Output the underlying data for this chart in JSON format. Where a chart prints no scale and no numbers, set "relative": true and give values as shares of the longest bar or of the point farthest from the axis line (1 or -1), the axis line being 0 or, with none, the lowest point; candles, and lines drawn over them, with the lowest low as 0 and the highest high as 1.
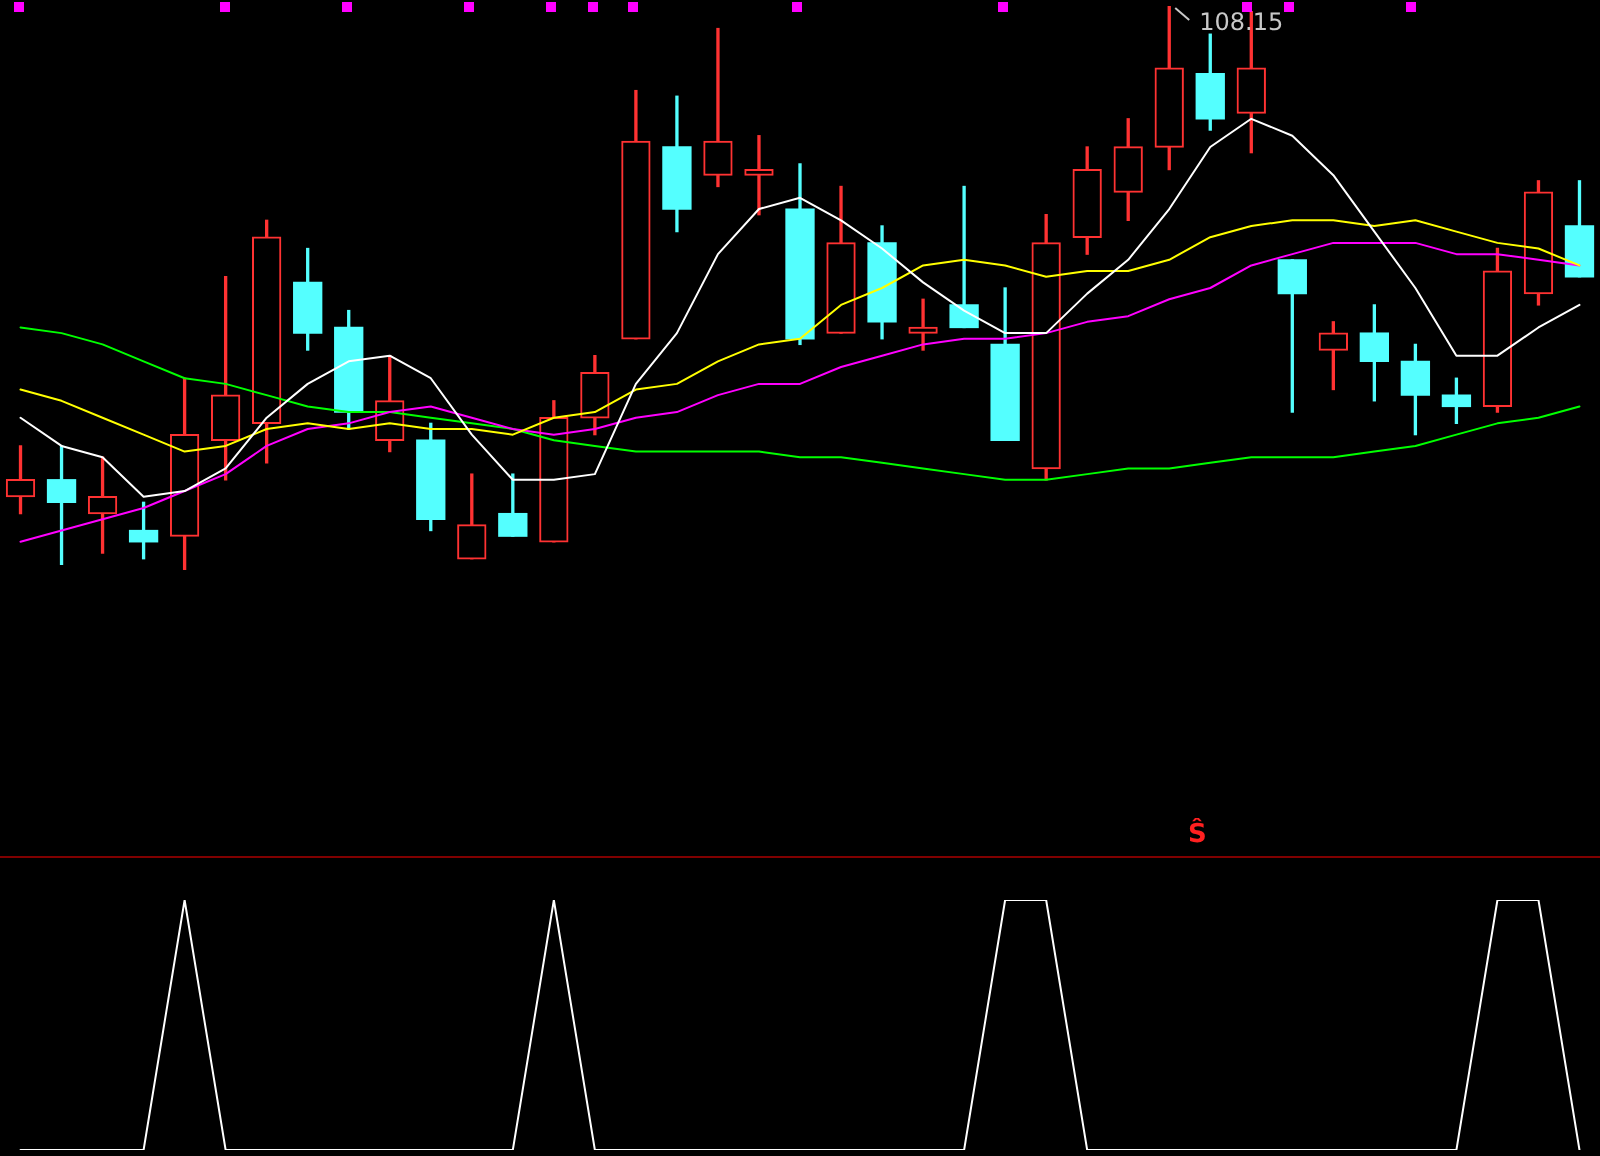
{
  "chart_data": [
    {
      "type": "candlestick",
      "relative": true,
      "categories": [
        null,
        null,
        null,
        null,
        null,
        null,
        null,
        null,
        null,
        null,
        null,
        null,
        null,
        null,
        null,
        null,
        null,
        null,
        null,
        null,
        null,
        null,
        null,
        null,
        null,
        null,
        null,
        null,
        null,
        null,
        null,
        null,
        null,
        null,
        null,
        null,
        null,
        null,
        null
      ],
      "ohlc": [
        [
          0.13,
          0.22,
          0.1,
          0.16
        ],
        [
          0.16,
          0.22,
          0.01,
          0.12
        ],
        [
          0.1,
          0.2,
          0.03,
          0.13
        ],
        [
          0.07,
          0.12,
          0.02,
          0.05
        ],
        [
          0.06,
          0.34,
          0,
          0.24
        ],
        [
          0.23,
          0.52,
          0.16,
          0.31
        ],
        [
          0.26,
          0.62,
          0.19,
          0.59
        ],
        [
          0.51,
          0.57,
          0.39,
          0.42
        ],
        [
          0.43,
          0.46,
          0.25,
          0.28
        ],
        [
          0.23,
          0.38,
          0.21,
          0.3
        ],
        [
          0.23,
          0.26,
          0.07,
          0.09
        ],
        [
          0.02,
          0.17,
          0.02,
          0.08
        ],
        [
          0.1,
          0.17,
          0.06,
          0.06
        ],
        [
          0.05,
          0.3,
          0.05,
          0.27
        ],
        [
          0.27,
          0.38,
          0.24,
          0.35
        ],
        [
          0.41,
          0.85,
          0.41,
          0.76
        ],
        [
          0.75,
          0.84,
          0.6,
          0.64
        ],
        [
          0.7,
          0.96,
          0.68,
          0.76
        ],
        [
          0.7,
          0.77,
          0.63,
          0.71
        ],
        [
          0.64,
          0.72,
          0.4,
          0.41
        ],
        [
          0.42,
          0.68,
          0.42,
          0.58
        ],
        [
          0.58,
          0.61,
          0.41,
          0.44
        ],
        [
          0.42,
          0.48,
          0.39,
          0.43
        ],
        [
          0.47,
          0.68,
          0.43,
          0.43
        ],
        [
          0.4,
          0.5,
          0.23,
          0.23
        ],
        [
          0.18,
          0.63,
          0.16,
          0.58
        ],
        [
          0.59,
          0.75,
          0.56,
          0.71
        ],
        [
          0.67,
          0.8,
          0.62,
          0.75
        ],
        [
          0.75,
          1,
          0.71,
          0.89
        ],
        [
          0.88,
          0.95,
          0.78,
          0.8
        ],
        [
          0.81,
          0.99,
          0.74,
          0.89
        ],
        [
          0.55,
          0.55,
          0.28,
          0.49
        ],
        [
          0.39,
          0.44,
          0.32,
          0.42
        ],
        [
          0.42,
          0.47,
          0.3,
          0.37
        ],
        [
          0.37,
          0.4,
          0.24,
          0.31
        ],
        [
          0.31,
          0.34,
          0.26,
          0.29
        ],
        [
          0.29,
          0.57,
          0.28,
          0.53
        ],
        [
          0.49,
          0.69,
          0.47,
          0.67
        ],
        [
          0.61,
          0.69,
          0.52,
          0.52
        ]
      ],
      "colors": [
        "#ff3232",
        "#54ffff",
        "#ff3232",
        "#54ffff",
        "#ff3232",
        "#ff3232",
        "#ff3232",
        "#54ffff",
        "#54ffff",
        "#ff3232",
        "#54ffff",
        "#ff3232",
        "#54ffff",
        "#ff3232",
        "#ff3232",
        "#ff3232",
        "#54ffff",
        "#ff3232",
        "#ff3232",
        "#54ffff",
        "#ff3232",
        "#54ffff",
        "#ff3232",
        "#54ffff",
        "#54ffff",
        "#ff3232",
        "#ff3232",
        "#ff3232",
        "#ff3232",
        "#54ffff",
        "#ff3232",
        "#54ffff",
        "#ff3232",
        "#54ffff",
        "#54ffff",
        "#54ffff",
        "#ff3232",
        "#ff3232",
        "#54ffff"
      ],
      "series": [
        {
          "type": "line",
          "color": "#ffffff",
          "values": [
            0.27,
            0.22,
            0.2,
            0.13,
            0.14,
            0.18,
            0.27,
            0.33,
            0.37,
            0.38,
            0.34,
            0.24,
            0.16,
            0.16,
            0.17,
            0.33,
            0.42,
            0.56,
            0.64,
            0.66,
            0.62,
            0.57,
            0.51,
            0.46,
            0.42,
            0.42,
            0.49,
            0.55,
            0.64,
            0.75,
            0.8,
            0.77,
            0.7,
            0.6,
            0.5,
            0.38,
            0.38,
            0.43,
            0.47
          ]
        },
        {
          "type": "line",
          "color": "#ffff00",
          "values": [
            0.32,
            0.3,
            0.27,
            0.24,
            0.21,
            0.22,
            0.25,
            0.26,
            0.25,
            0.26,
            0.25,
            0.25,
            0.24,
            0.27,
            0.28,
            0.32,
            0.33,
            0.37,
            0.4,
            0.41,
            0.47,
            0.5,
            0.54,
            0.55,
            0.54,
            0.52,
            0.53,
            0.53,
            0.55,
            0.59,
            0.61,
            0.62,
            0.62,
            0.61,
            0.62,
            0.6,
            0.58,
            0.57,
            0.54
          ]
        },
        {
          "type": "line",
          "color": "#ff00ff",
          "values": [
            0.05,
            0.07,
            0.09,
            0.11,
            0.14,
            0.17,
            0.22,
            0.25,
            0.26,
            0.28,
            0.29,
            0.27,
            0.25,
            0.24,
            0.25,
            0.27,
            0.28,
            0.31,
            0.33,
            0.33,
            0.36,
            0.38,
            0.4,
            0.41,
            0.41,
            0.42,
            0.44,
            0.45,
            0.48,
            0.5,
            0.54,
            0.56,
            0.58,
            0.58,
            0.58,
            0.56,
            0.56,
            0.55,
            0.54
          ]
        },
        {
          "type": "line",
          "color": "#00ff00",
          "values": [
            0.43,
            0.42,
            0.4,
            0.37,
            0.34,
            0.33,
            0.31,
            0.29,
            0.28,
            0.28,
            0.27,
            0.26,
            0.25,
            0.23,
            0.22,
            0.21,
            0.21,
            0.21,
            0.21,
            0.2,
            0.2,
            0.19,
            0.18,
            0.17,
            0.16,
            0.16,
            0.17,
            0.18,
            0.18,
            0.19,
            0.2,
            0.2,
            0.2,
            0.21,
            0.22,
            0.24,
            0.26,
            0.27,
            0.29
          ]
        }
      ],
      "annotations": [
        "108.15"
      ]
    },
    {
      "type": "line",
      "relative": true,
      "categories": [
        null,
        null,
        null,
        null,
        null,
        null,
        null,
        null,
        null,
        null,
        null,
        null,
        null,
        null,
        null,
        null,
        null,
        null,
        null,
        null,
        null,
        null,
        null,
        null,
        null,
        null,
        null,
        null,
        null,
        null,
        null,
        null,
        null,
        null,
        null,
        null,
        null,
        null,
        null
      ],
      "series": [
        {
          "color": "#ffffff",
          "values": [
            0,
            0,
            0,
            0,
            1,
            0,
            0,
            0,
            0,
            0,
            0,
            0,
            0,
            1,
            0,
            0,
            0,
            0,
            0,
            0,
            0,
            0,
            0,
            0,
            1,
            1,
            0,
            0,
            0,
            0,
            0,
            0,
            0,
            0,
            0,
            0,
            1,
            1,
            0
          ]
        }
      ],
      "annotations": [
        "Ŝ"
      ]
    }
  ]
}
